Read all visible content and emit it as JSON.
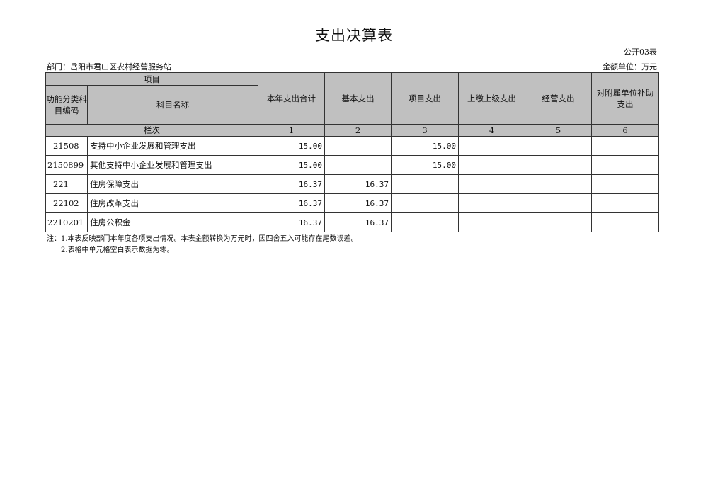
{
  "title": "支出决算表",
  "form_no": "公开03表",
  "department": "部门：岳阳市君山区农村经营服务站",
  "unit": "金额单位：万元",
  "header": {
    "project": "项目",
    "code": "功能分类科目编码",
    "name": "科目名称",
    "columns": [
      "本年支出合计",
      "基本支出",
      "项目支出",
      "上缴上级支出",
      "经营支出",
      "对附属单位补助支出"
    ],
    "row_label": "栏次",
    "column_numbers": [
      "1",
      "2",
      "3",
      "4",
      "5",
      "6"
    ]
  },
  "rows": [
    {
      "code": "21508",
      "name": "支持中小企业发展和管理支出",
      "values": [
        "15.00",
        "",
        "15.00",
        "",
        "",
        ""
      ]
    },
    {
      "code": "2150899",
      "name": "其他支持中小企业发展和管理支出",
      "values": [
        "15.00",
        "",
        "15.00",
        "",
        "",
        ""
      ]
    },
    {
      "code": "221",
      "name": "住房保障支出",
      "values": [
        "16.37",
        "16.37",
        "",
        "",
        "",
        ""
      ]
    },
    {
      "code": "22102",
      "name": "住房改革支出",
      "values": [
        "16.37",
        "16.37",
        "",
        "",
        "",
        ""
      ]
    },
    {
      "code": "2210201",
      "name": "住房公积金",
      "values": [
        "16.37",
        "16.37",
        "",
        "",
        "",
        ""
      ]
    }
  ],
  "notes": [
    "注：1.本表反映部门本年度各项支出情况。本表金额转换为万元时，因四舍五入可能存在尾数误差。",
    "2.表格中单元格空白表示数据为零。"
  ]
}
